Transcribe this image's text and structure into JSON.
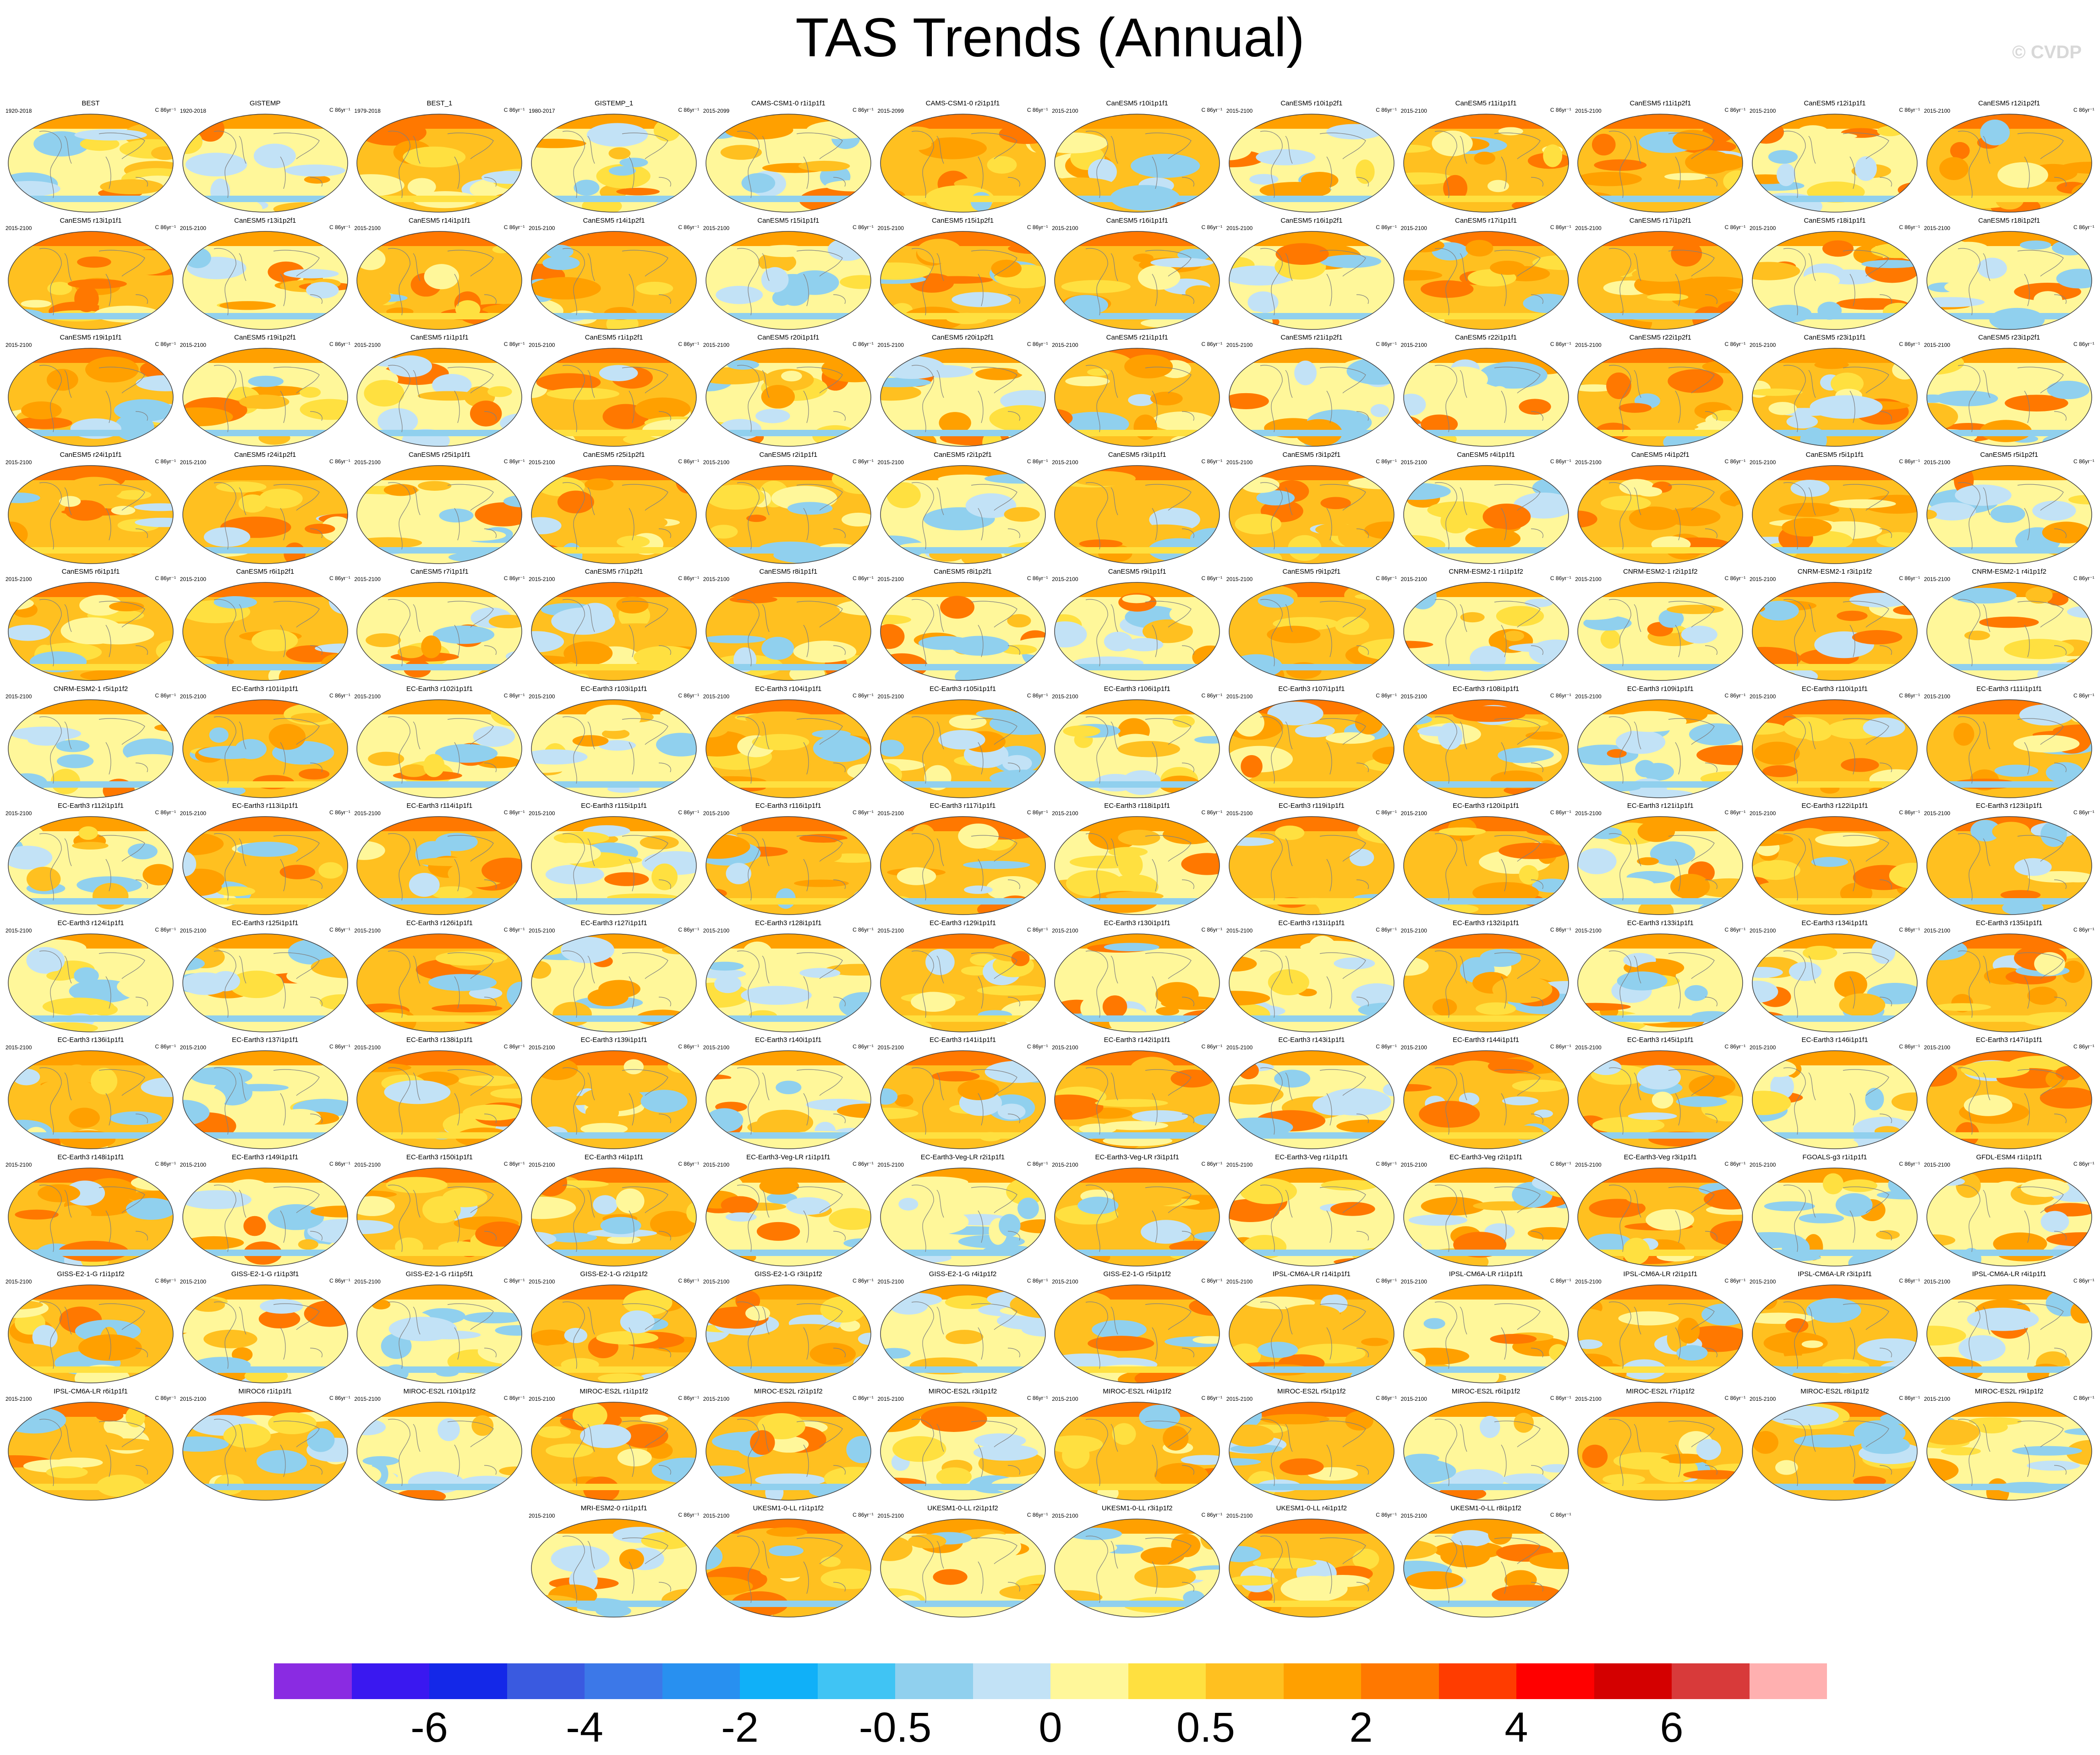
{
  "title": "TAS Trends (Annual)",
  "copyright": "© CVDP",
  "colorbar": {
    "colors": [
      "#8a2be2",
      "#3a18f0",
      "#1428e8",
      "#3a5ae0",
      "#3c78e8",
      "#2890f0",
      "#10b0f8",
      "#40c4f4",
      "#90d0ee",
      "#c2e2f6",
      "#fff79a",
      "#ffe040",
      "#ffc020",
      "#ffa000",
      "#ff7800",
      "#ff3c00",
      "#ff0000",
      "#d40000",
      "#d83a3a",
      "#ffb0b0"
    ],
    "tick_labels": [
      "-6",
      "-4",
      "-2",
      "-0.5",
      "0",
      "0.5",
      "2",
      "4",
      "6"
    ]
  },
  "panels": [
    {
      "t": "BEST",
      "l": "1920-2018"
    },
    {
      "t": "GISTEMP",
      "l": "1920-2018"
    },
    {
      "t": "BEST_1",
      "l": "1979-2018"
    },
    {
      "t": "GISTEMP_1",
      "l": "1980-2017"
    },
    {
      "t": "CAMS-CSM1-0 r1i1p1f1",
      "l": "2015-2099"
    },
    {
      "t": "CAMS-CSM1-0 r2i1p1f1",
      "l": "2015-2099"
    },
    {
      "t": "CanESM5 r10i1p1f1",
      "l": "2015-2100"
    },
    {
      "t": "CanESM5 r10i1p2f1",
      "l": "2015-2100"
    },
    {
      "t": "CanESM5 r11i1p1f1",
      "l": "2015-2100"
    },
    {
      "t": "CanESM5 r11i1p2f1",
      "l": "2015-2100"
    },
    {
      "t": "CanESM5 r12i1p1f1",
      "l": "2015-2100"
    },
    {
      "t": "CanESM5 r12i1p2f1",
      "l": "2015-2100"
    },
    {
      "t": "CanESM5 r13i1p1f1",
      "l": "2015-2100"
    },
    {
      "t": "CanESM5 r13i1p2f1",
      "l": "2015-2100"
    },
    {
      "t": "CanESM5 r14i1p1f1",
      "l": "2015-2100"
    },
    {
      "t": "CanESM5 r14i1p2f1",
      "l": "2015-2100"
    },
    {
      "t": "CanESM5 r15i1p1f1",
      "l": "2015-2100"
    },
    {
      "t": "CanESM5 r15i1p2f1",
      "l": "2015-2100"
    },
    {
      "t": "CanESM5 r16i1p1f1",
      "l": "2015-2100"
    },
    {
      "t": "CanESM5 r16i1p2f1",
      "l": "2015-2100"
    },
    {
      "t": "CanESM5 r17i1p1f1",
      "l": "2015-2100"
    },
    {
      "t": "CanESM5 r17i1p2f1",
      "l": "2015-2100"
    },
    {
      "t": "CanESM5 r18i1p1f1",
      "l": "2015-2100"
    },
    {
      "t": "CanESM5 r18i1p2f1",
      "l": "2015-2100"
    },
    {
      "t": "CanESM5 r19i1p1f1",
      "l": "2015-2100"
    },
    {
      "t": "CanESM5 r19i1p2f1",
      "l": "2015-2100"
    },
    {
      "t": "CanESM5 r1i1p1f1",
      "l": "2015-2100"
    },
    {
      "t": "CanESM5 r1i1p2f1",
      "l": "2015-2100"
    },
    {
      "t": "CanESM5 r20i1p1f1",
      "l": "2015-2100"
    },
    {
      "t": "CanESM5 r20i1p2f1",
      "l": "2015-2100"
    },
    {
      "t": "CanESM5 r21i1p1f1",
      "l": "2015-2100"
    },
    {
      "t": "CanESM5 r21i1p2f1",
      "l": "2015-2100"
    },
    {
      "t": "CanESM5 r22i1p1f1",
      "l": "2015-2100"
    },
    {
      "t": "CanESM5 r22i1p2f1",
      "l": "2015-2100"
    },
    {
      "t": "CanESM5 r23i1p1f1",
      "l": "2015-2100"
    },
    {
      "t": "CanESM5 r23i1p2f1",
      "l": "2015-2100"
    },
    {
      "t": "CanESM5 r24i1p1f1",
      "l": "2015-2100"
    },
    {
      "t": "CanESM5 r24i1p2f1",
      "l": "2015-2100"
    },
    {
      "t": "CanESM5 r25i1p1f1",
      "l": "2015-2100"
    },
    {
      "t": "CanESM5 r25i1p2f1",
      "l": "2015-2100"
    },
    {
      "t": "CanESM5 r2i1p1f1",
      "l": "2015-2100"
    },
    {
      "t": "CanESM5 r2i1p2f1",
      "l": "2015-2100"
    },
    {
      "t": "CanESM5 r3i1p1f1",
      "l": "2015-2100"
    },
    {
      "t": "CanESM5 r3i1p2f1",
      "l": "2015-2100"
    },
    {
      "t": "CanESM5 r4i1p1f1",
      "l": "2015-2100"
    },
    {
      "t": "CanESM5 r4i1p2f1",
      "l": "2015-2100"
    },
    {
      "t": "CanESM5 r5i1p1f1",
      "l": "2015-2100"
    },
    {
      "t": "CanESM5 r5i1p2f1",
      "l": "2015-2100"
    },
    {
      "t": "CanESM5 r6i1p1f1",
      "l": "2015-2100"
    },
    {
      "t": "CanESM5 r6i1p2f1",
      "l": "2015-2100"
    },
    {
      "t": "CanESM5 r7i1p1f1",
      "l": "2015-2100"
    },
    {
      "t": "CanESM5 r7i1p2f1",
      "l": "2015-2100"
    },
    {
      "t": "CanESM5 r8i1p1f1",
      "l": "2015-2100"
    },
    {
      "t": "CanESM5 r8i1p2f1",
      "l": "2015-2100"
    },
    {
      "t": "CanESM5 r9i1p1f1",
      "l": "2015-2100"
    },
    {
      "t": "CanESM5 r9i1p2f1",
      "l": "2015-2100"
    },
    {
      "t": "CNRM-ESM2-1 r1i1p1f2",
      "l": "2015-2100"
    },
    {
      "t": "CNRM-ESM2-1 r2i1p1f2",
      "l": "2015-2100"
    },
    {
      "t": "CNRM-ESM2-1 r3i1p1f2",
      "l": "2015-2100"
    },
    {
      "t": "CNRM-ESM2-1 r4i1p1f2",
      "l": "2015-2100"
    },
    {
      "t": "CNRM-ESM2-1 r5i1p1f2",
      "l": "2015-2100"
    },
    {
      "t": "EC-Earth3 r101i1p1f1",
      "l": "2015-2100"
    },
    {
      "t": "EC-Earth3 r102i1p1f1",
      "l": "2015-2100"
    },
    {
      "t": "EC-Earth3 r103i1p1f1",
      "l": "2015-2100"
    },
    {
      "t": "EC-Earth3 r104i1p1f1",
      "l": "2015-2100"
    },
    {
      "t": "EC-Earth3 r105i1p1f1",
      "l": "2015-2100"
    },
    {
      "t": "EC-Earth3 r106i1p1f1",
      "l": "2015-2100"
    },
    {
      "t": "EC-Earth3 r107i1p1f1",
      "l": "2015-2100"
    },
    {
      "t": "EC-Earth3 r108i1p1f1",
      "l": "2015-2100"
    },
    {
      "t": "EC-Earth3 r109i1p1f1",
      "l": "2015-2100"
    },
    {
      "t": "EC-Earth3 r110i1p1f1",
      "l": "2015-2100"
    },
    {
      "t": "EC-Earth3 r111i1p1f1",
      "l": "2015-2100"
    },
    {
      "t": "EC-Earth3 r112i1p1f1",
      "l": "2015-2100"
    },
    {
      "t": "EC-Earth3 r113i1p1f1",
      "l": "2015-2100"
    },
    {
      "t": "EC-Earth3 r114i1p1f1",
      "l": "2015-2100"
    },
    {
      "t": "EC-Earth3 r115i1p1f1",
      "l": "2015-2100"
    },
    {
      "t": "EC-Earth3 r116i1p1f1",
      "l": "2015-2100"
    },
    {
      "t": "EC-Earth3 r117i1p1f1",
      "l": "2015-2100"
    },
    {
      "t": "EC-Earth3 r118i1p1f1",
      "l": "2015-2100"
    },
    {
      "t": "EC-Earth3 r119i1p1f1",
      "l": "2015-2100"
    },
    {
      "t": "EC-Earth3 r120i1p1f1",
      "l": "2015-2100"
    },
    {
      "t": "EC-Earth3 r121i1p1f1",
      "l": "2015-2100"
    },
    {
      "t": "EC-Earth3 r122i1p1f1",
      "l": "2015-2100"
    },
    {
      "t": "EC-Earth3 r123i1p1f1",
      "l": "2015-2100"
    },
    {
      "t": "EC-Earth3 r124i1p1f1",
      "l": "2015-2100"
    },
    {
      "t": "EC-Earth3 r125i1p1f1",
      "l": "2015-2100"
    },
    {
      "t": "EC-Earth3 r126i1p1f1",
      "l": "2015-2100"
    },
    {
      "t": "EC-Earth3 r127i1p1f1",
      "l": "2015-2100"
    },
    {
      "t": "EC-Earth3 r128i1p1f1",
      "l": "2015-2100"
    },
    {
      "t": "EC-Earth3 r129i1p1f1",
      "l": "2015-2100"
    },
    {
      "t": "EC-Earth3 r130i1p1f1",
      "l": "2015-2100"
    },
    {
      "t": "EC-Earth3 r131i1p1f1",
      "l": "2015-2100"
    },
    {
      "t": "EC-Earth3 r132i1p1f1",
      "l": "2015-2100"
    },
    {
      "t": "EC-Earth3 r133i1p1f1",
      "l": "2015-2100"
    },
    {
      "t": "EC-Earth3 r134i1p1f1",
      "l": "2015-2100"
    },
    {
      "t": "EC-Earth3 r135i1p1f1",
      "l": "2015-2100"
    },
    {
      "t": "EC-Earth3 r136i1p1f1",
      "l": "2015-2100"
    },
    {
      "t": "EC-Earth3 r137i1p1f1",
      "l": "2015-2100"
    },
    {
      "t": "EC-Earth3 r138i1p1f1",
      "l": "2015-2100"
    },
    {
      "t": "EC-Earth3 r139i1p1f1",
      "l": "2015-2100"
    },
    {
      "t": "EC-Earth3 r140i1p1f1",
      "l": "2015-2100"
    },
    {
      "t": "EC-Earth3 r141i1p1f1",
      "l": "2015-2100"
    },
    {
      "t": "EC-Earth3 r142i1p1f1",
      "l": "2015-2100"
    },
    {
      "t": "EC-Earth3 r143i1p1f1",
      "l": "2015-2100"
    },
    {
      "t": "EC-Earth3 r144i1p1f1",
      "l": "2015-2100"
    },
    {
      "t": "EC-Earth3 r145i1p1f1",
      "l": "2015-2100"
    },
    {
      "t": "EC-Earth3 r146i1p1f1",
      "l": "2015-2100"
    },
    {
      "t": "EC-Earth3 r147i1p1f1",
      "l": "2015-2100"
    },
    {
      "t": "EC-Earth3 r148i1p1f1",
      "l": "2015-2100"
    },
    {
      "t": "EC-Earth3 r149i1p1f1",
      "l": "2015-2100"
    },
    {
      "t": "EC-Earth3 r150i1p1f1",
      "l": "2015-2100"
    },
    {
      "t": "EC-Earth3 r4i1p1f1",
      "l": "2015-2100"
    },
    {
      "t": "EC-Earth3-Veg-LR r1i1p1f1",
      "l": "2015-2100"
    },
    {
      "t": "EC-Earth3-Veg-LR r2i1p1f1",
      "l": "2015-2100"
    },
    {
      "t": "EC-Earth3-Veg-LR r3i1p1f1",
      "l": "2015-2100"
    },
    {
      "t": "EC-Earth3-Veg r1i1p1f1",
      "l": "2015-2100"
    },
    {
      "t": "EC-Earth3-Veg r2i1p1f1",
      "l": "2015-2100"
    },
    {
      "t": "EC-Earth3-Veg r3i1p1f1",
      "l": "2015-2100"
    },
    {
      "t": "FGOALS-g3 r1i1p1f1",
      "l": "2015-2100"
    },
    {
      "t": "GFDL-ESM4 r1i1p1f1",
      "l": "2015-2100"
    },
    {
      "t": "GISS-E2-1-G r1i1p1f2",
      "l": "2015-2100"
    },
    {
      "t": "GISS-E2-1-G r1i1p3f1",
      "l": "2015-2100"
    },
    {
      "t": "GISS-E2-1-G r1i1p5f1",
      "l": "2015-2100"
    },
    {
      "t": "GISS-E2-1-G r2i1p1f2",
      "l": "2015-2100"
    },
    {
      "t": "GISS-E2-1-G r3i1p1f2",
      "l": "2015-2100"
    },
    {
      "t": "GISS-E2-1-G r4i1p1f2",
      "l": "2015-2100"
    },
    {
      "t": "GISS-E2-1-G r5i1p1f2",
      "l": "2015-2100"
    },
    {
      "t": "IPSL-CM6A-LR r14i1p1f1",
      "l": "2015-2100"
    },
    {
      "t": "IPSL-CM6A-LR r1i1p1f1",
      "l": "2015-2100"
    },
    {
      "t": "IPSL-CM6A-LR r2i1p1f1",
      "l": "2015-2100"
    },
    {
      "t": "IPSL-CM6A-LR r3i1p1f1",
      "l": "2015-2100"
    },
    {
      "t": "IPSL-CM6A-LR r4i1p1f1",
      "l": "2015-2100"
    },
    {
      "t": "IPSL-CM6A-LR r6i1p1f1",
      "l": "2015-2100"
    },
    {
      "t": "MIROC6 r1i1p1f1",
      "l": "2015-2100"
    },
    {
      "t": "MIROC-ES2L r10i1p1f2",
      "l": "2015-2100"
    },
    {
      "t": "MIROC-ES2L r1i1p1f2",
      "l": "2015-2100"
    },
    {
      "t": "MIROC-ES2L r2i1p1f2",
      "l": "2015-2100"
    },
    {
      "t": "MIROC-ES2L r3i1p1f2",
      "l": "2015-2100"
    },
    {
      "t": "MIROC-ES2L r4i1p1f2",
      "l": "2015-2100"
    },
    {
      "t": "MIROC-ES2L r5i1p1f2",
      "l": "2015-2100"
    },
    {
      "t": "MIROC-ES2L r6i1p1f2",
      "l": "2015-2100"
    },
    {
      "t": "MIROC-ES2L r7i1p1f2",
      "l": "2015-2100"
    },
    {
      "t": "MIROC-ES2L r8i1p1f2",
      "l": "2015-2100"
    },
    {
      "t": "MIROC-ES2L r9i1p1f2",
      "l": "2015-2100"
    },
    {
      "t": "MRI-ESM2-0 r1i1p1f1",
      "l": "2015-2100"
    },
    {
      "t": "UKESM1-0-LL r1i1p1f2",
      "l": "2015-2100"
    },
    {
      "t": "UKESM1-0-LL r2i1p1f2",
      "l": "2015-2100"
    },
    {
      "t": "UKESM1-0-LL r3i1p1f2",
      "l": "2015-2100"
    },
    {
      "t": "UKESM1-0-LL r4i1p1f2",
      "l": "2015-2100"
    },
    {
      "t": "UKESM1-0-LL r8i1p1f2",
      "l": "2015-2100"
    }
  ],
  "panel_unit": "C 86yr⁻¹"
}
